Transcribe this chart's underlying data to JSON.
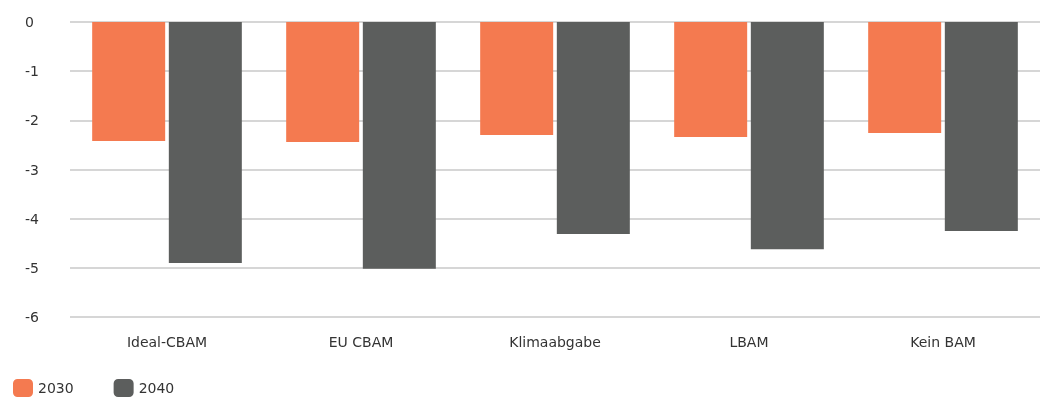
{
  "chart_data": {
    "type": "bar",
    "categories": [
      "Ideal-CBAM",
      "EU CBAM",
      "Klimaabgabe",
      "LBAM",
      "Kein BAM"
    ],
    "series": [
      {
        "name": "2030",
        "color": "#f47a50",
        "values": [
          -2.42,
          -2.44,
          -2.3,
          -2.34,
          -2.26
        ]
      },
      {
        "name": "2040",
        "color": "#5c5e5d",
        "values": [
          -4.9,
          -5.02,
          -4.31,
          -4.62,
          -4.25
        ]
      }
    ],
    "ylim": [
      -6,
      0
    ],
    "yticks": [
      -6,
      -5,
      -4,
      -3,
      -2,
      -1,
      0
    ],
    "grid": "y",
    "legend": "bottom left"
  }
}
